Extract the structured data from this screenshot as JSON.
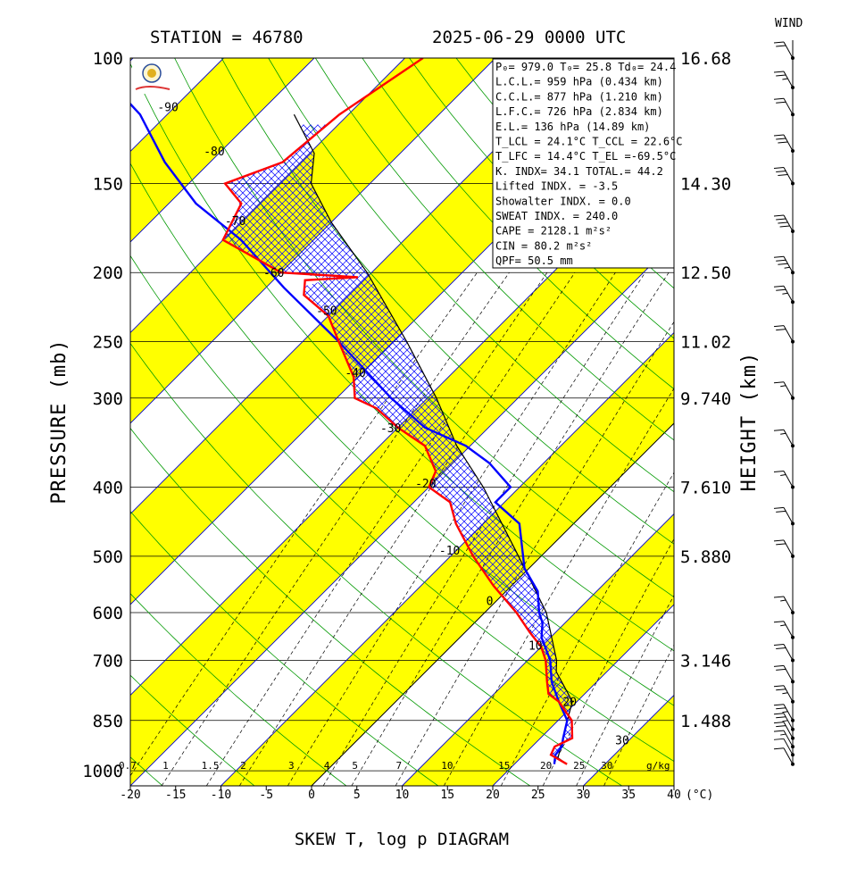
{
  "chart_data": {
    "type": "skew-t log-p diagram",
    "title_left": "STATION = 46780",
    "title_right": "2025-06-29 0000 UTC",
    "bottom_title": "SKEW T, log p DIAGRAM",
    "ylabel": "PRESSURE (mb)",
    "y2label": "HEIGHT (km)",
    "wind_label": "WIND",
    "x_unit": "(°C)",
    "mix_unit": "g/kg",
    "xlim": [
      -20,
      40
    ],
    "ylim": [
      1050,
      100
    ],
    "y_scale": "log",
    "pressure_ticks": [
      {
        "p": 100,
        "label": "100",
        "height": "16.68"
      },
      {
        "p": 150,
        "label": "150",
        "height": "14.30"
      },
      {
        "p": 200,
        "label": "200",
        "height": "12.50"
      },
      {
        "p": 250,
        "label": "250",
        "height": "11.02"
      },
      {
        "p": 300,
        "label": "300",
        "height": "9.740"
      },
      {
        "p": 400,
        "label": "400",
        "height": "7.610"
      },
      {
        "p": 500,
        "label": "500",
        "height": "5.880"
      },
      {
        "p": 600,
        "label": "600",
        "height": ""
      },
      {
        "p": 700,
        "label": "700",
        "height": "3.146"
      },
      {
        "p": 850,
        "label": "850",
        "height": "1.488"
      },
      {
        "p": 1000,
        "label": "1000",
        "height": ""
      }
    ],
    "temp_ticks": [
      {
        "t": -20,
        "label": "-20"
      },
      {
        "t": -15,
        "label": "-15"
      },
      {
        "t": -10,
        "label": "-10"
      },
      {
        "t": -5,
        "label": "-5"
      },
      {
        "t": 0,
        "label": "0"
      },
      {
        "t": 5,
        "label": "5"
      },
      {
        "t": 10,
        "label": "10"
      },
      {
        "t": 15,
        "label": "15"
      },
      {
        "t": 20,
        "label": "20"
      },
      {
        "t": 25,
        "label": "25"
      },
      {
        "t": 30,
        "label": "30"
      },
      {
        "t": 35,
        "label": "35"
      },
      {
        "t": 40,
        "label": "40"
      }
    ],
    "isotherm_labels": [
      {
        "t": -90,
        "p": 117,
        "label": "-90"
      },
      {
        "t": -80,
        "p": 135,
        "label": "-80"
      },
      {
        "t": -70,
        "p": 169,
        "label": "-70"
      },
      {
        "t": -60,
        "p": 200,
        "label": "-60"
      },
      {
        "t": -50,
        "p": 226,
        "label": "-50"
      },
      {
        "t": -40,
        "p": 276,
        "label": "-40"
      },
      {
        "t": -30,
        "p": 330,
        "label": "-30"
      },
      {
        "t": -20,
        "p": 395,
        "label": "-20"
      },
      {
        "t": -10,
        "p": 490,
        "label": "-10"
      },
      {
        "t": 0,
        "p": 577,
        "label": "0"
      },
      {
        "t": 10,
        "p": 667,
        "label": "10"
      },
      {
        "t": 20,
        "p": 800,
        "label": "20"
      },
      {
        "t": 30,
        "p": 905,
        "label": "30"
      }
    ],
    "mixing_ratio_labels": [
      {
        "w": 0.7,
        "label": "0.7"
      },
      {
        "w": 1,
        "label": "1"
      },
      {
        "w": 1.5,
        "label": "1.5"
      },
      {
        "w": 2,
        "label": "2"
      },
      {
        "w": 3,
        "label": "3"
      },
      {
        "w": 4,
        "label": "4"
      },
      {
        "w": 5,
        "label": "5"
      },
      {
        "w": 7,
        "label": "7"
      },
      {
        "w": 10,
        "label": "10"
      },
      {
        "w": 15,
        "label": "15"
      },
      {
        "w": 20,
        "label": "20"
      },
      {
        "w": 25,
        "label": "25"
      },
      {
        "w": 30,
        "label": "30"
      }
    ],
    "temperature_profile": [
      {
        "p": 979,
        "t": 25.8
      },
      {
        "p": 950,
        "t": 23.0
      },
      {
        "p": 925,
        "t": 22.5
      },
      {
        "p": 900,
        "t": 23.5
      },
      {
        "p": 850,
        "t": 21.5
      },
      {
        "p": 800,
        "t": 18.0
      },
      {
        "p": 780,
        "t": 16.0
      },
      {
        "p": 750,
        "t": 14.5
      },
      {
        "p": 700,
        "t": 12.0
      },
      {
        "p": 670,
        "t": 10.0
      },
      {
        "p": 640,
        "t": 7.2
      },
      {
        "p": 600,
        "t": 3.5
      },
      {
        "p": 550,
        "t": -2.0
      },
      {
        "p": 500,
        "t": -7.5
      },
      {
        "p": 450,
        "t": -13.0
      },
      {
        "p": 420,
        "t": -16.0
      },
      {
        "p": 400,
        "t": -20.0
      },
      {
        "p": 380,
        "t": -21.0
      },
      {
        "p": 350,
        "t": -25.0
      },
      {
        "p": 330,
        "t": -30.0
      },
      {
        "p": 310,
        "t": -34.5
      },
      {
        "p": 300,
        "t": -38.0
      },
      {
        "p": 280,
        "t": -40.5
      },
      {
        "p": 250,
        "t": -46.0
      },
      {
        "p": 230,
        "t": -50.0
      },
      {
        "p": 215,
        "t": -55.0
      },
      {
        "p": 205,
        "t": -56.5
      },
      {
        "p": 203,
        "t": -51.0
      },
      {
        "p": 200,
        "t": -60.0
      },
      {
        "p": 180,
        "t": -70.0
      },
      {
        "p": 160,
        "t": -72.0
      },
      {
        "p": 150,
        "t": -76.0
      },
      {
        "p": 140,
        "t": -72.0
      },
      {
        "p": 120,
        "t": -71.0
      },
      {
        "p": 100,
        "t": -68.0
      }
    ],
    "dewpoint_profile": [
      {
        "p": 979,
        "t": 24.4
      },
      {
        "p": 950,
        "t": 23.5
      },
      {
        "p": 925,
        "t": 23.3
      },
      {
        "p": 900,
        "t": 22.5
      },
      {
        "p": 850,
        "t": 21.0
      },
      {
        "p": 800,
        "t": 18.0
      },
      {
        "p": 750,
        "t": 15.0
      },
      {
        "p": 700,
        "t": 12.5
      },
      {
        "p": 650,
        "t": 9.0
      },
      {
        "p": 620,
        "t": 7.5
      },
      {
        "p": 600,
        "t": 6.0
      },
      {
        "p": 560,
        "t": 3.5
      },
      {
        "p": 520,
        "t": -0.5
      },
      {
        "p": 450,
        "t": -6.0
      },
      {
        "p": 420,
        "t": -11.0
      },
      {
        "p": 400,
        "t": -11.0
      },
      {
        "p": 370,
        "t": -16.0
      },
      {
        "p": 350,
        "t": -20.5
      },
      {
        "p": 330,
        "t": -27.0
      },
      {
        "p": 300,
        "t": -34.0
      },
      {
        "p": 250,
        "t": -46.0
      },
      {
        "p": 210,
        "t": -58.0
      },
      {
        "p": 180,
        "t": -68.0
      },
      {
        "p": 160,
        "t": -77.0
      },
      {
        "p": 140,
        "t": -85.0
      },
      {
        "p": 120,
        "t": -93.0
      },
      {
        "p": 100,
        "t": -105.0
      }
    ],
    "parcel_profile": [
      {
        "p": 979,
        "t": 25.8
      },
      {
        "p": 959,
        "t": 24.1
      },
      {
        "p": 900,
        "t": 22.5
      },
      {
        "p": 850,
        "t": 21.0
      },
      {
        "p": 800,
        "t": 19.5
      },
      {
        "p": 726,
        "t": 14.4
      },
      {
        "p": 700,
        "t": 13.2
      },
      {
        "p": 600,
        "t": 6.8
      },
      {
        "p": 500,
        "t": -2.5
      },
      {
        "p": 400,
        "t": -14.0
      },
      {
        "p": 350,
        "t": -21.5
      },
      {
        "p": 300,
        "t": -29.0
      },
      {
        "p": 250,
        "t": -38.5
      },
      {
        "p": 200,
        "t": -50.5
      },
      {
        "p": 170,
        "t": -60.0
      },
      {
        "p": 150,
        "t": -66.5
      },
      {
        "p": 136,
        "t": -69.5
      },
      {
        "p": 120,
        "t": -76.0
      }
    ],
    "indices": [
      {
        "label": "P₀= 979.0 T₀= 25.8 Td₀= 24.4"
      },
      {
        "label": "L.C.L.= 959 hPa (0.434 km)"
      },
      {
        "label": "C.C.L.= 877 hPa (1.210 km)"
      },
      {
        "label": "L.F.C.= 726 hPa (2.834 km)"
      },
      {
        "label": "E.L.= 136 hPa (14.89 km)"
      },
      {
        "label": "T_LCL = 24.1°C T_CCL = 22.6°C"
      },
      {
        "label": "T_LFC = 14.4°C  T_EL =-69.5°C"
      },
      {
        "label": "K. INDX= 34.1  TOTAL.= 44.2"
      },
      {
        "label": "Lifted INDX. =  -3.5"
      },
      {
        "label": "Showalter INDX. =    0.0"
      },
      {
        "label": "SWEAT INDX. =  240.0"
      },
      {
        "label": "CAPE = 2128.1 m²s²"
      },
      {
        "label": "CIN  =   80.2 m²s²"
      },
      {
        "label": "QPF= 50.5 mm"
      }
    ],
    "wind_profile": [
      {
        "p": 979,
        "speed_kt": 10
      },
      {
        "p": 950,
        "speed_kt": 10
      },
      {
        "p": 925,
        "speed_kt": 15
      },
      {
        "p": 900,
        "speed_kt": 20
      },
      {
        "p": 875,
        "speed_kt": 25
      },
      {
        "p": 850,
        "speed_kt": 25
      },
      {
        "p": 800,
        "speed_kt": 25
      },
      {
        "p": 750,
        "speed_kt": 20
      },
      {
        "p": 700,
        "speed_kt": 20
      },
      {
        "p": 650,
        "speed_kt": 15
      },
      {
        "p": 600,
        "speed_kt": 15
      },
      {
        "p": 500,
        "speed_kt": 20
      },
      {
        "p": 450,
        "speed_kt": 20
      },
      {
        "p": 400,
        "speed_kt": 15
      },
      {
        "p": 350,
        "speed_kt": 15
      },
      {
        "p": 300,
        "speed_kt": 15
      },
      {
        "p": 250,
        "speed_kt": 20
      },
      {
        "p": 220,
        "speed_kt": 25
      },
      {
        "p": 200,
        "speed_kt": 35
      },
      {
        "p": 175,
        "speed_kt": 40
      },
      {
        "p": 150,
        "speed_kt": 30
      },
      {
        "p": 135,
        "speed_kt": 30
      },
      {
        "p": 120,
        "speed_kt": 20
      },
      {
        "p": 110,
        "speed_kt": 25
      },
      {
        "p": 100,
        "speed_kt": 20
      }
    ]
  },
  "colors": {
    "temperature": "#ff0000",
    "dewpoint": "#0000ff",
    "isotherm": "#0000cc",
    "dry_adiabat": "#009900",
    "yellow_band": "#ffff00",
    "hatch": "#0000ff"
  }
}
